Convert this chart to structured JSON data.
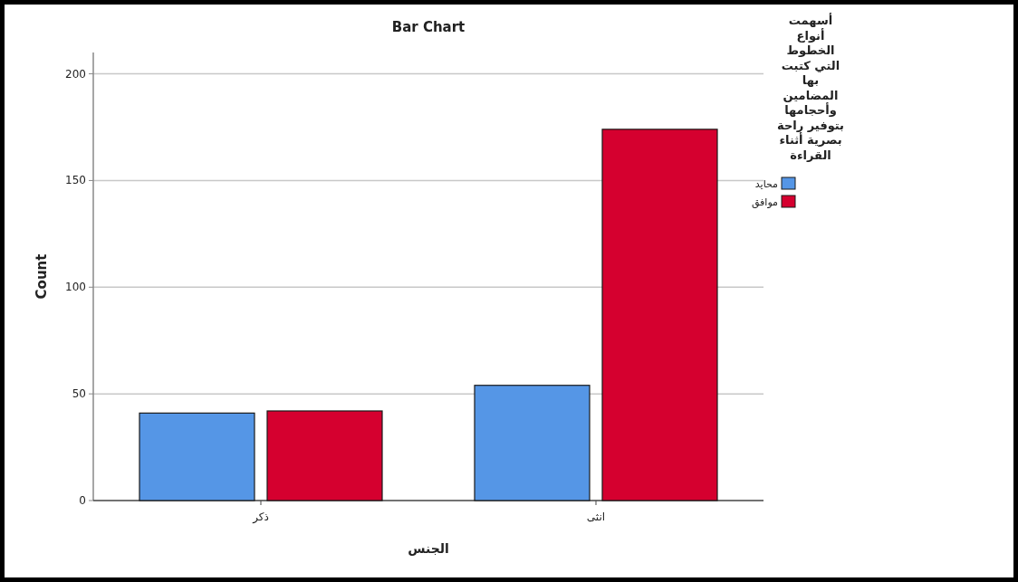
{
  "chart_data": {
    "type": "bar",
    "title": "Bar Chart",
    "xlabel": "الجنس",
    "ylabel": "Count",
    "legend_title": "أسهمت أنواع الخطوط التي كتبت بها المضامين وأحجامها بتوفير راحة بصرية أثناء القراءة",
    "categories": [
      "ذكر",
      "انثى"
    ],
    "series": [
      {
        "name": "محايد",
        "color": "#5596e6",
        "values": [
          41,
          54
        ]
      },
      {
        "name": "موافق",
        "color": "#d5002f",
        "values": [
          42,
          174
        ]
      }
    ],
    "ylim": [
      0,
      210
    ],
    "yticks": [
      0,
      50,
      100,
      150,
      200
    ],
    "grid": "y",
    "legend": "right"
  }
}
